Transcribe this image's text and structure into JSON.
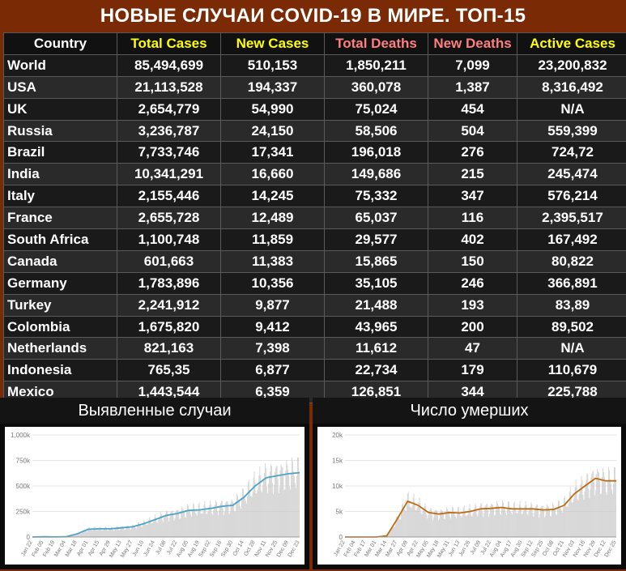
{
  "title": "НОВЫЕ СЛУЧАИ COVID-19 В МИРЕ. ТОП-15",
  "table": {
    "columns": [
      {
        "label": "Country",
        "color": "#ffffff"
      },
      {
        "label": "Total Cases",
        "color": "#ffff00"
      },
      {
        "label": "New Cases",
        "color": "#ffff00"
      },
      {
        "label": "Total Deaths",
        "color": "#ff7f7f"
      },
      {
        "label": "New Deaths",
        "color": "#ff7f7f"
      },
      {
        "label": "Active Cases",
        "color": "#ffff00"
      }
    ],
    "rows": [
      [
        "World",
        "85,494,699",
        "510,153",
        "1,850,211",
        "7,099",
        "23,200,832"
      ],
      [
        "USA",
        "21,113,528",
        "194,337",
        "360,078",
        "1,387",
        "8,316,492"
      ],
      [
        "UK",
        "2,654,779",
        "54,990",
        "75,024",
        "454",
        "N/A"
      ],
      [
        "Russia",
        "3,236,787",
        "24,150",
        "58,506",
        "504",
        "559,399"
      ],
      [
        "Brazil",
        "7,733,746",
        "17,341",
        "196,018",
        "276",
        "724,72"
      ],
      [
        "India",
        "10,341,291",
        "16,660",
        "149,686",
        "215",
        "245,474"
      ],
      [
        "Italy",
        "2,155,446",
        "14,245",
        "75,332",
        "347",
        "576,214"
      ],
      [
        "France",
        "2,655,728",
        "12,489",
        "65,037",
        "116",
        "2,395,517"
      ],
      [
        "South Africa",
        "1,100,748",
        "11,859",
        "29,577",
        "402",
        "167,492"
      ],
      [
        "Canada",
        "601,663",
        "11,383",
        "15,865",
        "150",
        "80,822"
      ],
      [
        "Germany",
        "1,783,896",
        "10,356",
        "35,105",
        "246",
        "366,891"
      ],
      [
        "Turkey",
        "2,241,912",
        "9,877",
        "21,488",
        "193",
        "83,89"
      ],
      [
        "Colombia",
        "1,675,820",
        "9,412",
        "43,965",
        "200",
        "89,502"
      ],
      [
        "Netherlands",
        "821,163",
        "7,398",
        "11,612",
        "47",
        "N/A"
      ],
      [
        "Indonesia",
        "765,35",
        "6,877",
        "22,734",
        "179",
        "110,679"
      ],
      [
        "Mexico",
        "1,443,544",
        "6,359",
        "126,851",
        "344",
        "225,788"
      ]
    ]
  },
  "chart_data": [
    {
      "type": "bar",
      "title": "Выявленные случаи",
      "color_bars": "#c8c8c8",
      "color_line": "#4aa3c8",
      "y_ticks": [
        "0",
        "250k",
        "500k",
        "750k",
        "1,000k"
      ],
      "ylim": [
        0,
        1000000
      ],
      "x_ticks": [
        "Jan 22",
        "Feb 05",
        "Feb 19",
        "Mar 04",
        "Mar 18",
        "Apr 01",
        "Apr 15",
        "Apr 29",
        "May 13",
        "May 27",
        "Jun 10",
        "Jun 24",
        "Jul 08",
        "Jul 22",
        "Aug 05",
        "Aug 19",
        "Sep 02",
        "Sep 16",
        "Sep 30",
        "Oct 14",
        "Oct 28",
        "Nov 11",
        "Nov 25",
        "Dec 09",
        "Dec 23"
      ],
      "values": [
        0,
        2000,
        1000,
        2000,
        30000,
        75000,
        80000,
        80000,
        90000,
        100000,
        130000,
        170000,
        210000,
        230000,
        260000,
        265000,
        280000,
        300000,
        310000,
        390000,
        500000,
        580000,
        600000,
        620000,
        630000
      ]
    },
    {
      "type": "bar",
      "title": "Число умерших",
      "color_bars": "#c8c8c8",
      "color_line": "#c06a10",
      "y_ticks": [
        "0",
        "5k",
        "10k",
        "15k",
        "20k"
      ],
      "ylim": [
        0,
        20000
      ],
      "x_ticks": [
        "Jan 22",
        "Feb 04",
        "Feb 17",
        "Mar 01",
        "Mar 14",
        "Mar 27",
        "Apr 09",
        "Apr 22",
        "May 05",
        "May 18",
        "May 31",
        "Jun 13",
        "Jun 26",
        "Jul 09",
        "Jul 22",
        "Aug 04",
        "Aug 17",
        "Aug 30",
        "Sep 12",
        "Sep 25",
        "Oct 08",
        "Oct 21",
        "Nov 03",
        "Nov 16",
        "Nov 29",
        "Dec 12",
        "Dec 25"
      ],
      "values": [
        0,
        0,
        0,
        0,
        200,
        3500,
        7000,
        6200,
        4800,
        4500,
        4800,
        4700,
        5000,
        5500,
        5600,
        5800,
        5500,
        5500,
        5500,
        5300,
        5400,
        6200,
        8500,
        10000,
        11500,
        11000,
        11000
      ]
    }
  ]
}
